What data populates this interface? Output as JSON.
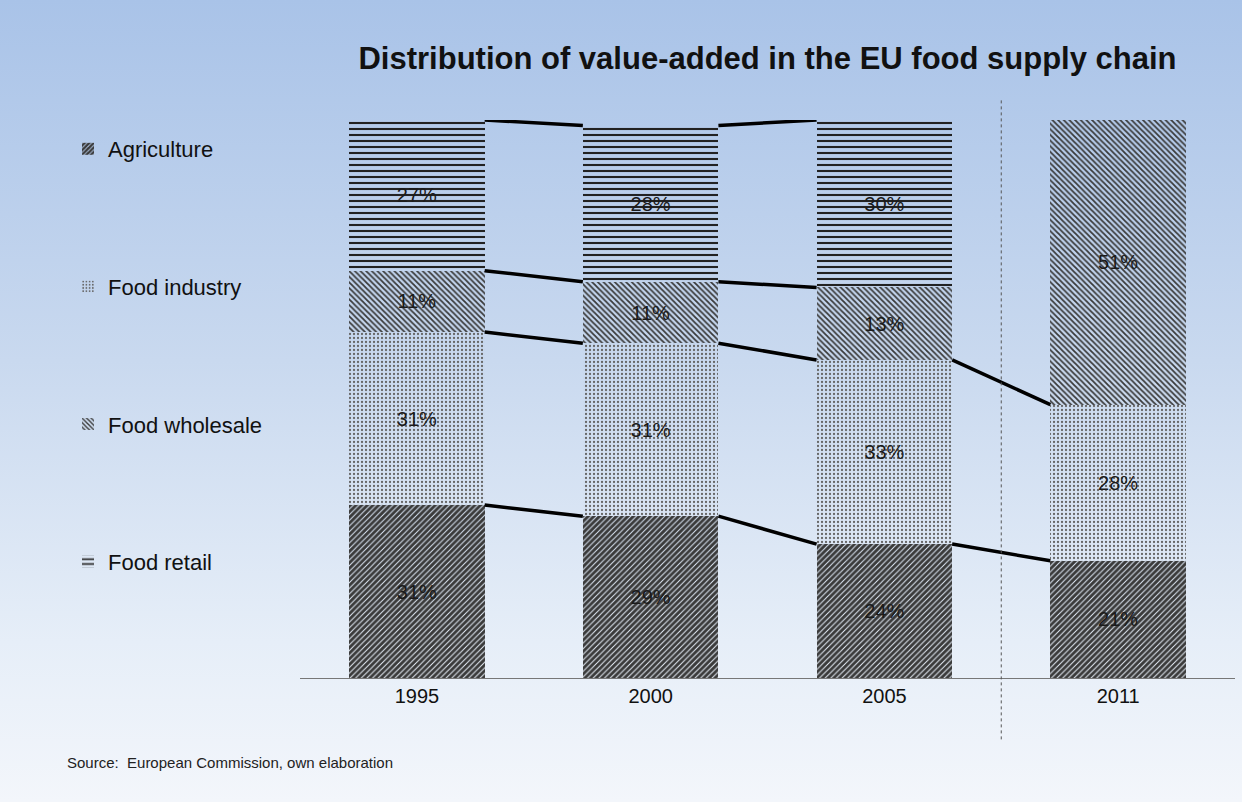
{
  "chart_data": {
    "type": "bar",
    "title": "Distribution of value-added in the EU food supply chain",
    "source": "Source:  European Commission, own elaboration",
    "categories": [
      "1995",
      "2000",
      "2005",
      "2011"
    ],
    "stacked": true,
    "data_labels": true,
    "tick_labels": "x",
    "grid": false,
    "legend": "left",
    "ylim": [
      0,
      100
    ],
    "series": [
      {
        "name": "Agriculture",
        "color": "#ffffff",
        "values": [
          31,
          29,
          24,
          21
        ],
        "value_labels": [
          "31%",
          "29%",
          "24%",
          "21%"
        ]
      },
      {
        "name": "Food industry",
        "color": "#ffffff",
        "values": [
          31,
          31,
          33,
          28
        ],
        "value_labels": [
          "31%",
          "31%",
          "33%",
          "28%"
        ]
      },
      {
        "name": "Food wholesale",
        "color": "#ffffff",
        "values": [
          11,
          11,
          13,
          51
        ],
        "value_labels": [
          "11%",
          "11%",
          "13%",
          "51%"
        ]
      },
      {
        "name": "Food retail",
        "color": "#ffffff",
        "values": [
          27,
          28,
          30,
          null
        ],
        "value_labels": [
          "27%",
          "28%",
          "30%",
          null
        ]
      }
    ]
  }
}
